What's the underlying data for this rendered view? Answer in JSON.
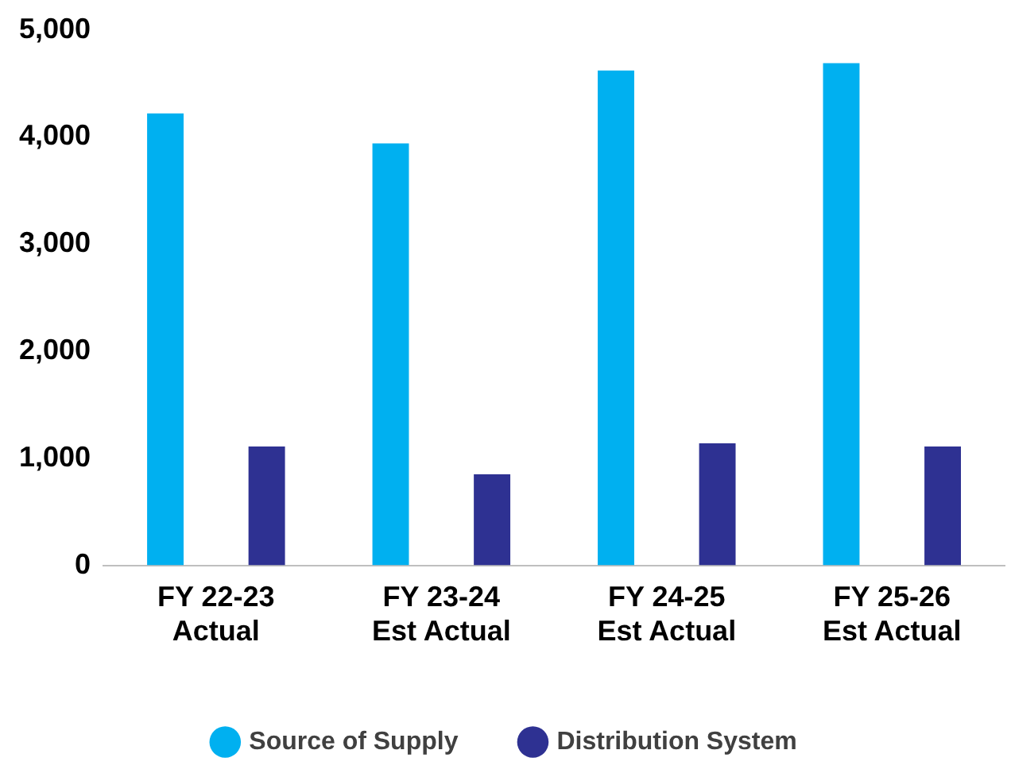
{
  "chart_data": {
    "type": "bar",
    "categories": [
      "FY 22-23\nActual",
      "FY 23-24\nEst Actual",
      "FY 24-25\nEst Actual",
      "FY 25-26\nEst Actual"
    ],
    "series": [
      {
        "name": "Source of Supply",
        "color": "#00b0f0",
        "values": [
          4220,
          3940,
          4620,
          4690
        ]
      },
      {
        "name": "Distribution System",
        "color": "#2e3192",
        "values": [
          1110,
          850,
          1140,
          1110
        ]
      }
    ],
    "ylim": [
      0,
      5000
    ],
    "yticks": [
      {
        "value": 0,
        "label": "0"
      },
      {
        "value": 1000,
        "label": "1,000"
      },
      {
        "value": 2000,
        "label": "2,000"
      },
      {
        "value": 3000,
        "label": "3,000"
      },
      {
        "value": 4000,
        "label": "4,000"
      },
      {
        "value": 5000,
        "label": "5,000"
      }
    ],
    "grid": false,
    "legend": "bottom"
  }
}
